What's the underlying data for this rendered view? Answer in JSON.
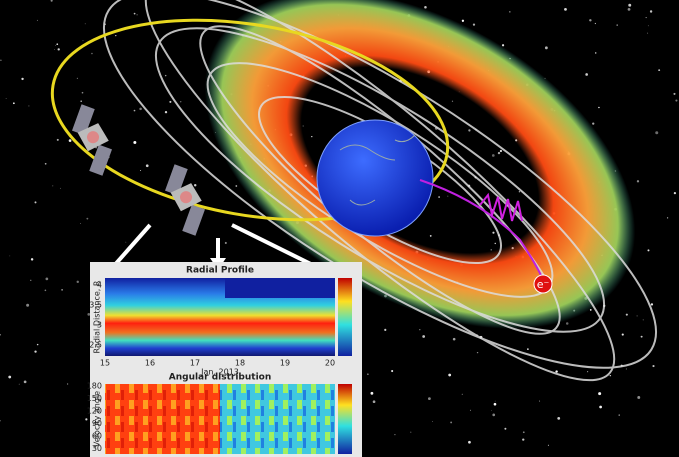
{
  "illustration": {
    "electron_label": "e⁻",
    "radial_profile": {
      "title": "Radial Profile",
      "y_label": "Radial Distance, R",
      "y_ticks": [
        "4",
        "3.5",
        "3",
        "2.5"
      ],
      "x_ticks": [
        "15",
        "16",
        "17",
        "18",
        "19",
        "20"
      ],
      "x_label": "Jan. 2013"
    },
    "angular_distribution": {
      "title": "Angular distribution",
      "y_label": "Velocity angle",
      "y_ticks": [
        "180",
        "150",
        "120",
        "90",
        "60",
        "30"
      ]
    }
  }
}
